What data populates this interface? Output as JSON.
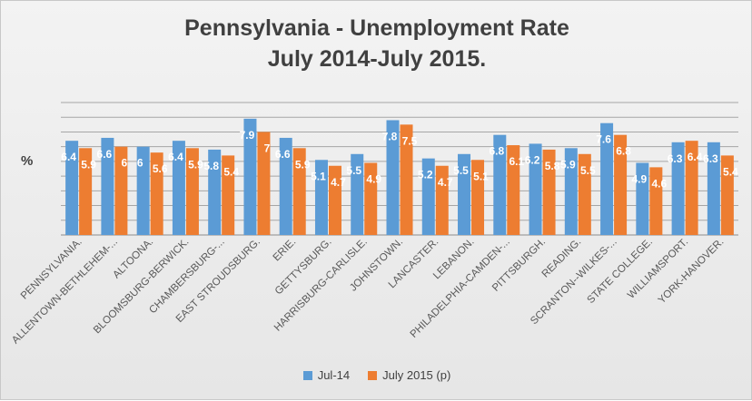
{
  "chart_data": {
    "type": "bar",
    "title": "Pennsylvania - Unemployment Rate",
    "subtitle": "July 2014-July 2015.",
    "ylabel": "%",
    "xlabel": "",
    "grid": true,
    "legend_position": "bottom",
    "ylim": [
      0,
      9
    ],
    "categories": [
      "PENNSYLVANIA.",
      "ALLENTOWN-BETHLEHEM-...",
      "ALTOONA.",
      "BLOOMSBURG-BERWICK.",
      "CHAMBERSBURG-...",
      "EAST STROUDSBURG.",
      "ERIE.",
      "GETTYSBURG.",
      "HARRISBURG-CARLISLE.",
      "JOHNSTOWN.",
      "LANCASTER.",
      "LEBANON.",
      "PHILADELPHIA-CAMDEN-...",
      "PITTSBURGH.",
      "READING.",
      "SCRANTON--WILKES-...",
      "STATE COLLEGE.",
      "WILLIAMSPORT.",
      "YORK-HANOVER."
    ],
    "series": [
      {
        "name": "Jul-14",
        "color": "#5b9bd5",
        "values": [
          6.4,
          6.6,
          6,
          6.4,
          5.8,
          7.9,
          6.6,
          5.1,
          5.5,
          7.8,
          5.2,
          5.5,
          6.8,
          6.2,
          5.9,
          7.6,
          4.9,
          6.3,
          6.3
        ],
        "labels": [
          "6.4",
          "6.6",
          "6",
          "6.4",
          "5.8",
          "7.9",
          "6.6",
          "5.1",
          "5.5",
          "7.8",
          "5.2",
          "5.5",
          "6.8",
          "6.2",
          "5.9",
          "7.6",
          "4.9",
          "6.3",
          "6.3"
        ]
      },
      {
        "name": "July 2015 (p)",
        "color": "#ed7d31",
        "values": [
          5.9,
          6,
          5.6,
          5.9,
          5.4,
          7,
          5.9,
          4.7,
          4.9,
          7.5,
          4.7,
          5.1,
          6.1,
          5.8,
          5.5,
          6.8,
          4.6,
          6.4,
          5.4
        ],
        "labels": [
          "5.9",
          "6",
          "5.6",
          "5.9",
          "5.4",
          "7",
          "5.9",
          "4.7",
          "4.9",
          "7.5",
          "4.7",
          "5.1",
          "6.1",
          "5.8",
          "5.5",
          "6.8",
          "4.6",
          "6.4",
          "5.4"
        ]
      }
    ]
  }
}
